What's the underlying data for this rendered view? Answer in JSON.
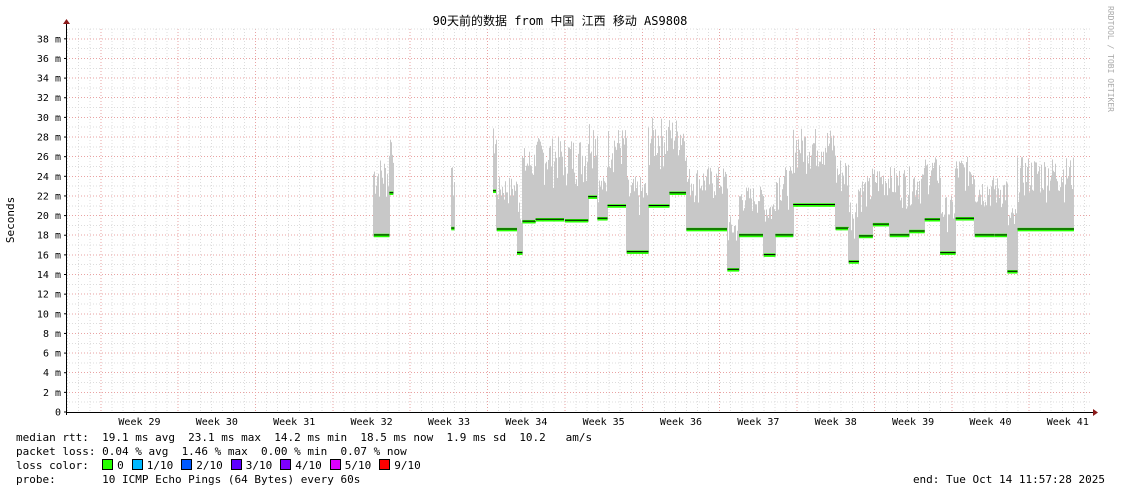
{
  "chart_data": {
    "type": "area",
    "title": "90天前的数据 from 中国 江西 移动 AS9808",
    "ylabel": "Seconds",
    "watermark": "RRDTOOL / TOBI OETIKER",
    "ylim": [
      0,
      39
    ],
    "yticks": [
      {
        "v": 0,
        "label": "0"
      },
      {
        "v": 2,
        "label": "2 m"
      },
      {
        "v": 4,
        "label": "4 m"
      },
      {
        "v": 6,
        "label": "6 m"
      },
      {
        "v": 8,
        "label": "8 m"
      },
      {
        "v": 10,
        "label": "10 m"
      },
      {
        "v": 12,
        "label": "12 m"
      },
      {
        "v": 14,
        "label": "14 m"
      },
      {
        "v": 16,
        "label": "16 m"
      },
      {
        "v": 18,
        "label": "18 m"
      },
      {
        "v": 20,
        "label": "20 m"
      },
      {
        "v": 22,
        "label": "22 m"
      },
      {
        "v": 24,
        "label": "24 m"
      },
      {
        "v": 26,
        "label": "26 m"
      },
      {
        "v": 28,
        "label": "28 m"
      },
      {
        "v": 30,
        "label": "30 m"
      },
      {
        "v": 32,
        "label": "32 m"
      },
      {
        "v": 34,
        "label": "34 m"
      },
      {
        "v": 36,
        "label": "36 m"
      },
      {
        "v": 38,
        "label": "38 m"
      }
    ],
    "xlim": [
      28.55,
      41.8
    ],
    "xticks": [
      "Week 29",
      "Week 30",
      "Week 31",
      "Week 32",
      "Week 33",
      "Week 34",
      "Week 35",
      "Week 36",
      "Week 37",
      "Week 38",
      "Week 39",
      "Week 40",
      "Week 41"
    ],
    "grid": true,
    "segments": [
      {
        "x": [
          32.53,
          32.73
        ],
        "median": 18.0,
        "max": 26
      },
      {
        "x": [
          32.73,
          32.78
        ],
        "median": 22.3,
        "max": 29
      },
      {
        "x": [
          33.53,
          33.57
        ],
        "median": 18.7,
        "max": 25
      },
      {
        "x": [
          34.07,
          34.12
        ],
        "median": 22.5,
        "max": 29
      },
      {
        "x": [
          34.12,
          34.38
        ],
        "median": 18.6,
        "max": 24
      },
      {
        "x": [
          34.38,
          34.45
        ],
        "median": 16.2,
        "max": 23
      },
      {
        "x": [
          34.45,
          34.62
        ],
        "median": 19.4,
        "max": 27
      },
      {
        "x": [
          34.62,
          35.0
        ],
        "median": 19.6,
        "max": 28
      },
      {
        "x": [
          35.0,
          35.3
        ],
        "median": 19.5,
        "max": 28
      },
      {
        "x": [
          35.3,
          35.42
        ],
        "median": 21.9,
        "max": 30
      },
      {
        "x": [
          35.42,
          35.55
        ],
        "median": 19.7,
        "max": 24
      },
      {
        "x": [
          35.55,
          35.8
        ],
        "median": 21.0,
        "max": 29
      },
      {
        "x": [
          35.8,
          36.08
        ],
        "median": 16.3,
        "max": 24
      },
      {
        "x": [
          36.08,
          36.35
        ],
        "median": 21.0,
        "max": 30
      },
      {
        "x": [
          36.35,
          36.57
        ],
        "median": 22.3,
        "max": 30
      },
      {
        "x": [
          36.57,
          37.1
        ],
        "median": 18.6,
        "max": 25
      },
      {
        "x": [
          37.1,
          37.25
        ],
        "median": 14.5,
        "max": 20
      },
      {
        "x": [
          37.25,
          37.57
        ],
        "median": 18.0,
        "max": 23
      },
      {
        "x": [
          37.57,
          37.72
        ],
        "median": 16.0,
        "max": 22
      },
      {
        "x": [
          37.72,
          37.95
        ],
        "median": 18.0,
        "max": 25
      },
      {
        "x": [
          37.95,
          38.5
        ],
        "median": 21.1,
        "max": 29
      },
      {
        "x": [
          38.5,
          38.67
        ],
        "median": 18.7,
        "max": 26
      },
      {
        "x": [
          38.67,
          38.8
        ],
        "median": 15.3,
        "max": 22
      },
      {
        "x": [
          38.8,
          38.98
        ],
        "median": 17.9,
        "max": 24
      },
      {
        "x": [
          38.98,
          39.2
        ],
        "median": 19.1,
        "max": 25
      },
      {
        "x": [
          39.2,
          39.45
        ],
        "median": 18.0,
        "max": 25
      },
      {
        "x": [
          39.45,
          39.65
        ],
        "median": 18.4,
        "max": 25
      },
      {
        "x": [
          39.65,
          39.85
        ],
        "median": 19.6,
        "max": 26
      },
      {
        "x": [
          39.85,
          40.05
        ],
        "median": 16.2,
        "max": 22
      },
      {
        "x": [
          40.05,
          40.3
        ],
        "median": 19.7,
        "max": 26
      },
      {
        "x": [
          40.3,
          40.55
        ],
        "median": 18.0,
        "max": 24
      },
      {
        "x": [
          40.55,
          40.72
        ],
        "median": 18.0,
        "max": 24
      },
      {
        "x": [
          40.72,
          40.85
        ],
        "median": 14.3,
        "max": 21
      },
      {
        "x": [
          40.85,
          41.58
        ],
        "median": 18.6,
        "max": 26
      }
    ]
  },
  "stats": {
    "rtt_line": "median rtt:  19.1 ms avg  23.1 ms max  14.2 ms min  18.5 ms now  1.9 ms sd  10.2   am/s",
    "loss_line": "packet loss: 0.04 % avg  1.46 % max  0.00 % min  0.07 % now",
    "loss_color_label": "loss color:",
    "loss_colors": [
      {
        "label": "0",
        "color": "#26ff00"
      },
      {
        "label": "1/10",
        "color": "#00b8ff"
      },
      {
        "label": "2/10",
        "color": "#0059ff"
      },
      {
        "label": "3/10",
        "color": "#5e00ff"
      },
      {
        "label": "4/10",
        "color": "#7e00ff"
      },
      {
        "label": "5/10",
        "color": "#dd00ff"
      },
      {
        "label": "9/10",
        "color": "#ff0000"
      }
    ],
    "probe_line": "probe:       10 ICMP Echo Pings (64 Bytes) every 60s",
    "end_line": "end: Tue Oct 14 11:57:28 2025"
  },
  "colors": {
    "smoke": "#c8c8c8",
    "median": "#000000",
    "loss0": "#26ff00",
    "grid_minor": "#dcdcdc",
    "grid_major": "#e9a3a3",
    "axis": "#000000",
    "arrow": "#8b1a1a"
  }
}
